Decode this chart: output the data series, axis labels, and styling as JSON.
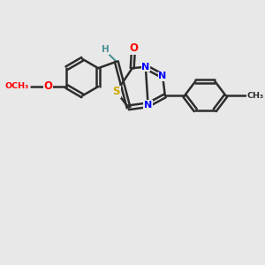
{
  "background_color": "#e8e8e8",
  "bond_color": "#2d2d2d",
  "atom_colors": {
    "O": "#ff0000",
    "N": "#0000ff",
    "S": "#ccaa00",
    "C": "#2d2d2d",
    "H": "#4a9090"
  },
  "figsize": [
    3.0,
    3.0
  ],
  "dpi": 100
}
